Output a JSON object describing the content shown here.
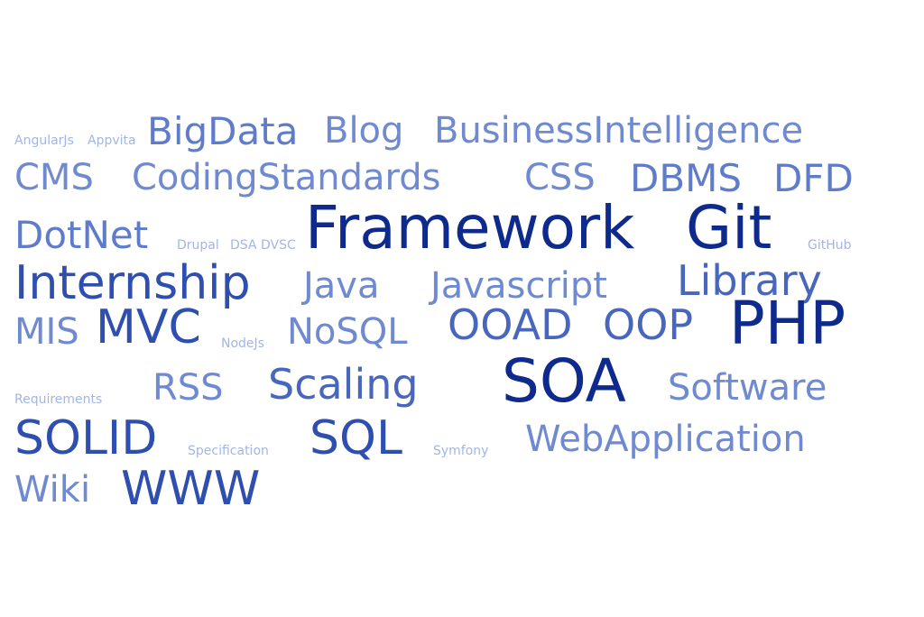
{
  "tags": {
    "angularjs": "AngularJs",
    "appvita": "Appvita",
    "bigdata": "BigData",
    "blog": "Blog",
    "businessintelligence": "BusinessIntelligence",
    "cms": "CMS",
    "codingstandards": "CodingStandards",
    "css": "CSS",
    "dbms": "DBMS",
    "dfd": "DFD",
    "dotnet": "DotNet",
    "drupal": "Drupal",
    "dsa": "DSA",
    "dvsc": "DVSC",
    "framework": "Framework",
    "git": "Git",
    "github": "GitHub",
    "internship": "Internship",
    "java": "Java",
    "javascript": "Javascript",
    "library": "Library",
    "mis": "MIS",
    "mvc": "MVC",
    "nodejs": "NodeJs",
    "nosql": "NoSQL",
    "ooad": "OOAD",
    "oop": "OOP",
    "php": "PHP",
    "requirements": "Requirements",
    "rss": "RSS",
    "scaling": "Scaling",
    "soa": "SOA",
    "software": "Software",
    "solid": "SOLID",
    "specification": "Specification",
    "sql": "SQL",
    "symfony": "Symfony",
    "webapplication": "WebApplication",
    "wiki": "Wiki",
    "www": "WWW"
  },
  "colors": {
    "tier1": "#a3b5e6",
    "tier2": "#6f8ad0",
    "tier3": "#5f7ccb",
    "tier4": "#4866be",
    "tier5": "#2f4fb0",
    "tier6": "#0e2a8c"
  }
}
